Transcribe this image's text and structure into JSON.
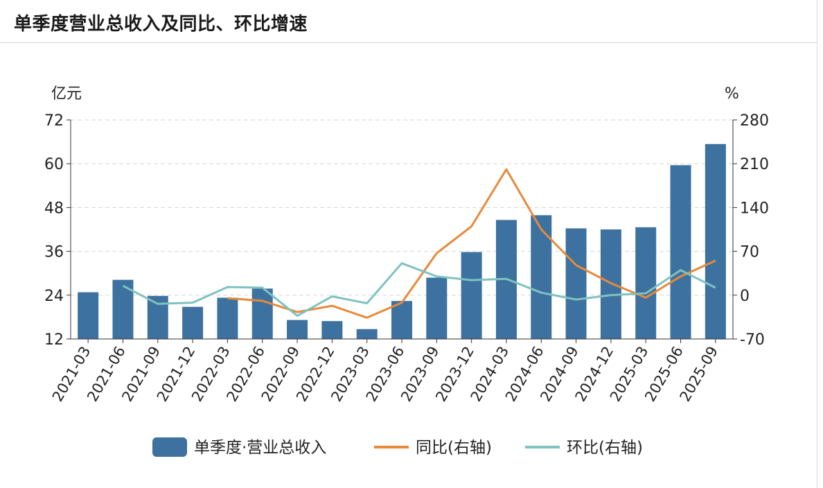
{
  "title": "单季度营业总收入及同比、环比增速",
  "chart_data": {
    "type": "bar+line",
    "title": "单季度营业总收入及同比、环比增速",
    "categories": [
      "2021-03",
      "2021-06",
      "2021-09",
      "2021-12",
      "2022-03",
      "2022-06",
      "2022-09",
      "2022-12",
      "2023-03",
      "2023-06",
      "2023-09",
      "2023-12",
      "2024-03",
      "2024-06",
      "2024-09",
      "2024-12",
      "2025-03",
      "2025-06",
      "2025-09"
    ],
    "left_axis": {
      "unit": "亿元",
      "range": [
        12,
        72
      ],
      "ticks": [
        "12",
        "24",
        "36",
        "48",
        "60",
        "72"
      ]
    },
    "right_axis": {
      "unit": "%",
      "range": [
        -70,
        280
      ],
      "ticks": [
        "-70",
        "0",
        "70",
        "140",
        "210",
        "280"
      ]
    },
    "grid": true,
    "legend_position": "bottom",
    "series": [
      {
        "name": "单季度·营业总收入",
        "kind": "bar",
        "axis": "left",
        "color": "#3d72a0",
        "values": [
          24.8,
          28.2,
          23.8,
          20.8,
          23.3,
          25.8,
          17.2,
          16.9,
          14.7,
          22.4,
          28.8,
          35.8,
          44.6,
          45.9,
          42.3,
          42.0,
          42.6,
          59.6,
          65.4
        ]
      },
      {
        "name": "同比(右轴)",
        "kind": "line",
        "axis": "right",
        "color": "#e8893a",
        "values": [
          null,
          null,
          null,
          null,
          -5,
          -9,
          -27,
          -17,
          -36,
          -12,
          67,
          110,
          201,
          105,
          48,
          19,
          -4,
          30,
          55
        ]
      },
      {
        "name": "环比(右轴)",
        "kind": "line",
        "axis": "right",
        "color": "#7fc2c0",
        "values": [
          null,
          15,
          -14,
          -12,
          13,
          12,
          -33,
          -2,
          -13,
          51,
          30,
          24,
          26,
          4,
          -7,
          0,
          3,
          40,
          12
        ]
      }
    ]
  }
}
